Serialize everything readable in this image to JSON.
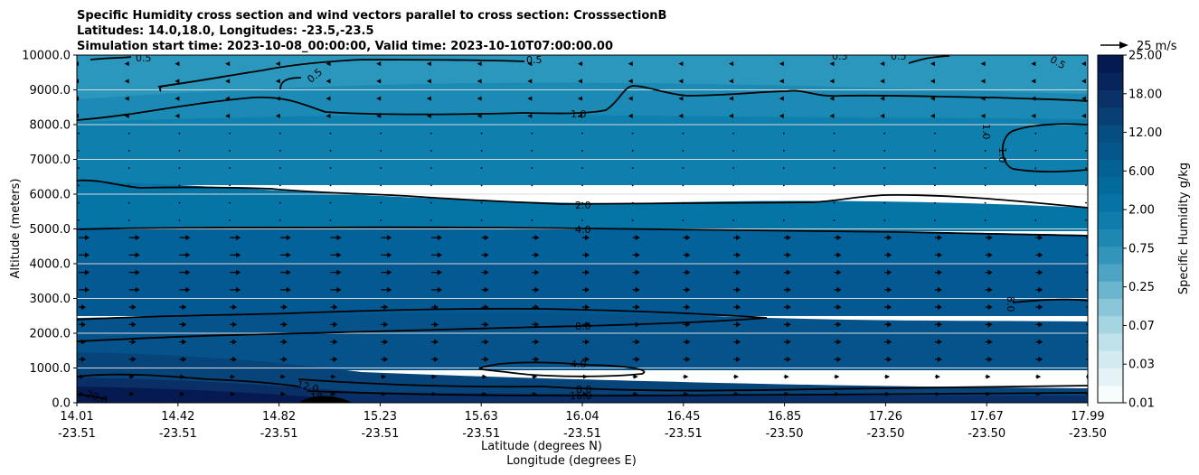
{
  "chart_data": {
    "type": "heatmap",
    "title": [
      "Specific Humidity cross section and wind vectors parallel to cross section: CrosssectionB",
      "Latitudes: 14.0,18.0, Longitudes: -23.5,-23.5",
      "Simulation start time: 2023-10-08_00:00:00, Valid time: 2023-10-10T07:00:00.00"
    ],
    "ylabel": "Altitude (meters)",
    "xlabel": [
      "Latitude (degrees N)",
      "Longitude (degrees E)"
    ],
    "ylim": [
      0,
      10000
    ],
    "y_ticks": [
      "0.0",
      "1000.0",
      "2000.0",
      "3000.0",
      "4000.0",
      "5000.0",
      "6000.0",
      "7000.0",
      "8000.0",
      "9000.0",
      "10000.0"
    ],
    "y_tick_values": [
      0,
      1000,
      2000,
      3000,
      4000,
      5000,
      6000,
      7000,
      8000,
      9000,
      10000
    ],
    "x_ticks": [
      {
        "lat": "14.01",
        "lon": "-23.51"
      },
      {
        "lat": "14.42",
        "lon": "-23.51"
      },
      {
        "lat": "14.82",
        "lon": "-23.51"
      },
      {
        "lat": "15.23",
        "lon": "-23.51"
      },
      {
        "lat": "15.63",
        "lon": "-23.51"
      },
      {
        "lat": "16.04",
        "lon": "-23.51"
      },
      {
        "lat": "16.45",
        "lon": "-23.51"
      },
      {
        "lat": "16.85",
        "lon": "-23.50"
      },
      {
        "lat": "17.26",
        "lon": "-23.50"
      },
      {
        "lat": "17.67",
        "lon": "-23.50"
      },
      {
        "lat": "17.99",
        "lon": "-23.50"
      }
    ],
    "colorbar": {
      "label": "Specific Humidity g/kg",
      "ticks": [
        "0.01",
        "0.03",
        "0.07",
        "0.25",
        "0.75",
        "2.00",
        "6.00",
        "12.00",
        "18.00",
        "25.00"
      ],
      "colors": [
        "#f7fcfd",
        "#e6f3f6",
        "#d3ebf0",
        "#bfe1ea",
        "#a6d5e2",
        "#8ac6d9",
        "#6cb5cf",
        "#4ea3c4",
        "#3395bc",
        "#1f88b2",
        "#0f7dab",
        "#0574a4",
        "#036a9c",
        "#046193",
        "#05568a",
        "#064d82",
        "#083f75",
        "#0a3168",
        "#08245d",
        "#061a52"
      ]
    },
    "vector_key": {
      "label": "25 m/s"
    },
    "contour_labels": [
      "0.5",
      "0.5",
      "0.5",
      "0.5",
      "0.5",
      "0.5",
      "1.0",
      "1.0",
      "1.0",
      "2.0",
      "4.0",
      "8.0",
      "8.0",
      "4.0",
      "8.0",
      "16.0",
      "12.0",
      "18",
      "20.0"
    ],
    "grid": true
  }
}
